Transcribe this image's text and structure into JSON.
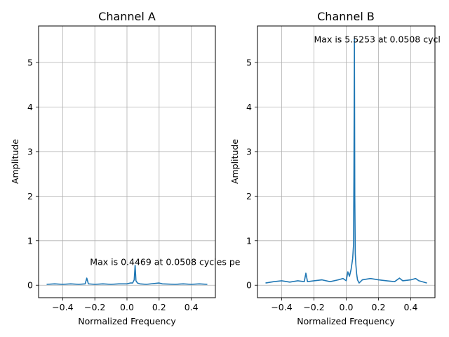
{
  "colors": {
    "line": "#1f77b4",
    "grid": "#b0b0b0",
    "axis": "#000000",
    "background": "#ffffff"
  },
  "chart_data": [
    {
      "type": "line",
      "title": "Channel A",
      "xlabel": "Normalized Frequency",
      "ylabel": "Amplitude",
      "xlim": [
        -0.55,
        0.55
      ],
      "ylim": [
        -0.28,
        5.82
      ],
      "xticks": [
        -0.4,
        -0.2,
        0.0,
        0.2,
        0.4
      ],
      "xtick_labels": [
        "−0.4",
        "−0.2",
        "0.0",
        "0.2",
        "0.4"
      ],
      "yticks": [
        0,
        1,
        2,
        3,
        4,
        5
      ],
      "ytick_labels": [
        "0",
        "1",
        "2",
        "3",
        "4",
        "5"
      ],
      "grid": true,
      "annotation": {
        "text": "Max is 0.4469 at 0.0508 cycles pe",
        "x": -0.23,
        "y": 0.45
      },
      "series": [
        {
          "x": [
            -0.5,
            -0.45,
            -0.4,
            -0.35,
            -0.3,
            -0.26,
            -0.25,
            -0.24,
            -0.2,
            -0.15,
            -0.1,
            -0.05,
            0.0,
            0.02,
            0.035,
            0.045,
            0.0508,
            0.056,
            0.065,
            0.08,
            0.12,
            0.2,
            0.22,
            0.3,
            0.35,
            0.4,
            0.45,
            0.5
          ],
          "y": [
            0.02,
            0.03,
            0.02,
            0.03,
            0.02,
            0.03,
            0.16,
            0.03,
            0.02,
            0.03,
            0.02,
            0.03,
            0.03,
            0.05,
            0.05,
            0.12,
            0.4469,
            0.1,
            0.05,
            0.03,
            0.02,
            0.05,
            0.03,
            0.02,
            0.03,
            0.02,
            0.03,
            0.02
          ]
        }
      ]
    },
    {
      "type": "line",
      "title": "Channel B",
      "xlabel": "Normalized Frequency",
      "ylabel": "Amplitude",
      "xlim": [
        -0.55,
        0.55
      ],
      "ylim": [
        -0.28,
        5.82
      ],
      "xticks": [
        -0.4,
        -0.2,
        0.0,
        0.2,
        0.4
      ],
      "xtick_labels": [
        "−0.4",
        "−0.2",
        "0.0",
        "0.2",
        "0.4"
      ],
      "yticks": [
        0,
        1,
        2,
        3,
        4,
        5
      ],
      "ytick_labels": [
        "0",
        "1",
        "2",
        "3",
        "4",
        "5"
      ],
      "grid": true,
      "annotation": {
        "text": "Max is 5.5253 at 0.0508 cycl",
        "x": -0.2,
        "y": 5.45
      },
      "series": [
        {
          "x": [
            -0.5,
            -0.45,
            -0.4,
            -0.35,
            -0.3,
            -0.26,
            -0.25,
            -0.24,
            -0.2,
            -0.15,
            -0.1,
            -0.05,
            -0.02,
            0.0,
            0.01,
            0.02,
            0.03,
            0.04,
            0.045,
            0.048,
            0.0508,
            0.053,
            0.056,
            0.06,
            0.065,
            0.07,
            0.08,
            0.1,
            0.15,
            0.2,
            0.25,
            0.3,
            0.33,
            0.35,
            0.4,
            0.43,
            0.45,
            0.5
          ],
          "y": [
            0.05,
            0.08,
            0.1,
            0.07,
            0.1,
            0.08,
            0.27,
            0.08,
            0.1,
            0.12,
            0.08,
            0.12,
            0.15,
            0.1,
            0.3,
            0.2,
            0.35,
            0.6,
            0.9,
            2.5,
            5.5253,
            2.0,
            0.7,
            0.45,
            0.25,
            0.12,
            0.05,
            0.12,
            0.15,
            0.12,
            0.1,
            0.08,
            0.16,
            0.1,
            0.12,
            0.15,
            0.1,
            0.05
          ]
        }
      ]
    }
  ]
}
